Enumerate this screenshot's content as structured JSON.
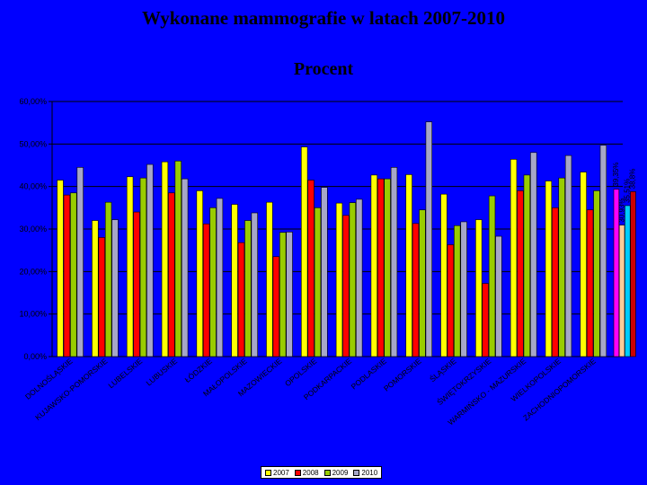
{
  "page": {
    "title": "Wykonane mammografie w latach 2007-2010",
    "subtitle": "Procent"
  },
  "chart_data": {
    "type": "bar",
    "title": "Wykonane mammografie w latach 2007-2010",
    "subtitle": "Procent",
    "xlabel": "",
    "ylabel": "",
    "ylim": [
      0,
      60
    ],
    "y_ticks": [
      "0,00%",
      "10,00%",
      "20,00%",
      "30,00%",
      "40,00%",
      "50,00%",
      "60,00%"
    ],
    "grid": true,
    "legend_position": "bottom",
    "categories": [
      "DOLNOŚLĄSKIE",
      "KUJAWSKO-POMORSKIE",
      "LUBELSKIE",
      "LUBUSKIE",
      "ŁÓDZKIE",
      "MAŁOPOLSKIE",
      "MAZOWIECKIE",
      "OPOLSKIE",
      "PODKARPACKIE",
      "PODLASKIE",
      "POMORSKIE",
      "ŚLĄSKIE",
      "ŚWIĘTOKRZYSKIE",
      "WARMIŃSKO - MAZURSKIE",
      "WIELKOPOLSKIE",
      "ZACHODNIOPOMORSKIE"
    ],
    "series": [
      {
        "name": "2007",
        "color": "#ffff00",
        "values": [
          41.5,
          32.0,
          42.3,
          45.8,
          39.0,
          35.8,
          36.3,
          49.3,
          36.1,
          42.7,
          42.8,
          38.2,
          32.2,
          46.4,
          41.3,
          43.4
        ]
      },
      {
        "name": "2008",
        "color": "#ff0000",
        "values": [
          38.0,
          28.0,
          34.0,
          38.5,
          31.2,
          26.8,
          23.5,
          41.5,
          33.2,
          41.8,
          31.3,
          26.3,
          17.2,
          39.0,
          35.0,
          34.5
        ]
      },
      {
        "name": "2009",
        "color": "#99cc00",
        "values": [
          38.5,
          36.3,
          42.0,
          46.0,
          35.0,
          32.0,
          29.2,
          35.0,
          36.2,
          41.8,
          34.5,
          30.8,
          37.8,
          42.7,
          42.0,
          39.0
        ]
      },
      {
        "name": "2010",
        "color": "#a6a6c8",
        "values": [
          44.5,
          32.2,
          45.2,
          41.8,
          37.2,
          33.8,
          29.3,
          39.8,
          37.0,
          44.5,
          55.2,
          31.7,
          28.3,
          48.0,
          47.3,
          49.7
        ]
      }
    ],
    "extra_group": {
      "values": [
        39.35,
        30.93,
        35.51,
        38.8
      ],
      "colors": [
        "#ff00ff",
        "#ffcc99",
        "#00ccff",
        "#cc0000"
      ],
      "labels": [
        "39,35%",
        "30,93%",
        "35,51%",
        "38,8%"
      ]
    }
  }
}
